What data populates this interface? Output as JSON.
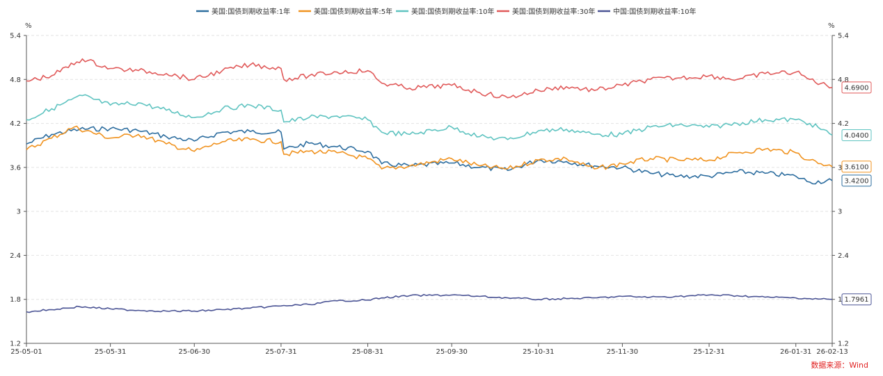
{
  "chart_data": {
    "type": "line",
    "unit_left": "%",
    "unit_right": "%",
    "ylim": [
      1.2,
      5.4
    ],
    "y_ticks": [
      "1.2",
      "1.8",
      "2.4",
      "3",
      "3.6",
      "4.2",
      "4.8",
      "5.4"
    ],
    "x_tick_labels": [
      "25-05-01",
      "25-05-31",
      "25-06-30",
      "25-07-31",
      "25-08-31",
      "25-09-30",
      "25-10-31",
      "25-11-30",
      "25-12-31",
      "26-01-31",
      "26-02-13"
    ],
    "grid": true,
    "legend_position": "top",
    "source": "数据来源：Wind",
    "series": [
      {
        "name": "美国:国债到期收益率:1年",
        "color": "#2b6c9e",
        "last_label": "3.4200",
        "points": [
          [
            "25-05-01",
            3.92
          ],
          [
            "25-05-10",
            4.05
          ],
          [
            "25-05-20",
            4.12
          ],
          [
            "25-05-31",
            4.13
          ],
          [
            "25-06-10",
            4.1
          ],
          [
            "25-06-20",
            4.02
          ],
          [
            "25-06-30",
            3.96
          ],
          [
            "25-07-10",
            4.08
          ],
          [
            "25-07-20",
            4.09
          ],
          [
            "25-07-31",
            4.08
          ],
          [
            "25-08-01",
            3.85
          ],
          [
            "25-08-10",
            3.93
          ],
          [
            "25-08-20",
            3.88
          ],
          [
            "25-08-31",
            3.82
          ],
          [
            "25-09-05",
            3.65
          ],
          [
            "25-09-15",
            3.62
          ],
          [
            "25-09-30",
            3.66
          ],
          [
            "25-10-10",
            3.6
          ],
          [
            "25-10-20",
            3.56
          ],
          [
            "25-10-31",
            3.7
          ],
          [
            "25-11-10",
            3.68
          ],
          [
            "25-11-20",
            3.62
          ],
          [
            "25-11-30",
            3.6
          ],
          [
            "25-12-10",
            3.52
          ],
          [
            "25-12-20",
            3.48
          ],
          [
            "25-12-31",
            3.48
          ],
          [
            "26-01-10",
            3.54
          ],
          [
            "26-01-20",
            3.52
          ],
          [
            "26-01-31",
            3.48
          ],
          [
            "26-02-05",
            3.4
          ],
          [
            "26-02-13",
            3.42
          ]
        ]
      },
      {
        "name": "美国:国债到期收益率:5年",
        "color": "#f0921e",
        "last_label": "3.6100",
        "points": [
          [
            "25-05-01",
            3.84
          ],
          [
            "25-05-10",
            4.0
          ],
          [
            "25-05-18",
            4.15
          ],
          [
            "25-05-31",
            4.0
          ],
          [
            "25-06-10",
            4.05
          ],
          [
            "25-06-20",
            3.92
          ],
          [
            "25-06-30",
            3.82
          ],
          [
            "25-07-10",
            3.95
          ],
          [
            "25-07-20",
            3.98
          ],
          [
            "25-07-31",
            3.95
          ],
          [
            "25-08-01",
            3.78
          ],
          [
            "25-08-10",
            3.82
          ],
          [
            "25-08-20",
            3.8
          ],
          [
            "25-08-31",
            3.72
          ],
          [
            "25-09-05",
            3.58
          ],
          [
            "25-09-15",
            3.62
          ],
          [
            "25-09-30",
            3.72
          ],
          [
            "25-10-10",
            3.62
          ],
          [
            "25-10-20",
            3.58
          ],
          [
            "25-10-31",
            3.7
          ],
          [
            "25-11-10",
            3.72
          ],
          [
            "25-11-20",
            3.58
          ],
          [
            "25-11-30",
            3.65
          ],
          [
            "25-12-10",
            3.72
          ],
          [
            "25-12-20",
            3.7
          ],
          [
            "25-12-31",
            3.7
          ],
          [
            "26-01-10",
            3.8
          ],
          [
            "26-01-20",
            3.85
          ],
          [
            "26-01-31",
            3.8
          ],
          [
            "26-02-05",
            3.7
          ],
          [
            "26-02-13",
            3.61
          ]
        ]
      },
      {
        "name": "美国:国债到期收益率:10年",
        "color": "#5ec3c0",
        "last_label": "4.0400",
        "points": [
          [
            "25-05-01",
            4.25
          ],
          [
            "25-05-10",
            4.4
          ],
          [
            "25-05-21",
            4.58
          ],
          [
            "25-05-31",
            4.45
          ],
          [
            "25-06-10",
            4.48
          ],
          [
            "25-06-20",
            4.38
          ],
          [
            "25-06-30",
            4.28
          ],
          [
            "25-07-10",
            4.4
          ],
          [
            "25-07-20",
            4.45
          ],
          [
            "25-07-31",
            4.38
          ],
          [
            "25-08-01",
            4.22
          ],
          [
            "25-08-10",
            4.28
          ],
          [
            "25-08-20",
            4.3
          ],
          [
            "25-08-31",
            4.25
          ],
          [
            "25-09-05",
            4.08
          ],
          [
            "25-09-15",
            4.05
          ],
          [
            "25-09-30",
            4.15
          ],
          [
            "25-10-10",
            4.02
          ],
          [
            "25-10-20",
            3.98
          ],
          [
            "25-10-31",
            4.1
          ],
          [
            "25-11-10",
            4.12
          ],
          [
            "25-11-20",
            4.05
          ],
          [
            "25-11-30",
            4.05
          ],
          [
            "25-12-10",
            4.15
          ],
          [
            "25-12-20",
            4.18
          ],
          [
            "25-12-31",
            4.15
          ],
          [
            "26-01-10",
            4.2
          ],
          [
            "26-01-20",
            4.25
          ],
          [
            "26-01-31",
            4.25
          ],
          [
            "26-02-05",
            4.2
          ],
          [
            "26-02-13",
            4.04
          ]
        ]
      },
      {
        "name": "美国:国债到期收益率:30年",
        "color": "#e05858",
        "last_label": "4.6900",
        "points": [
          [
            "25-05-01",
            4.78
          ],
          [
            "25-05-10",
            4.85
          ],
          [
            "25-05-21",
            5.08
          ],
          [
            "25-05-31",
            4.95
          ],
          [
            "25-06-10",
            4.92
          ],
          [
            "25-06-20",
            4.88
          ],
          [
            "25-06-30",
            4.8
          ],
          [
            "25-07-10",
            4.92
          ],
          [
            "25-07-20",
            5.0
          ],
          [
            "25-07-31",
            4.95
          ],
          [
            "25-08-01",
            4.8
          ],
          [
            "25-08-10",
            4.85
          ],
          [
            "25-08-20",
            4.9
          ],
          [
            "25-08-31",
            4.92
          ],
          [
            "25-09-05",
            4.75
          ],
          [
            "25-09-15",
            4.68
          ],
          [
            "25-09-30",
            4.72
          ],
          [
            "25-10-10",
            4.62
          ],
          [
            "25-10-20",
            4.55
          ],
          [
            "25-10-31",
            4.65
          ],
          [
            "25-11-10",
            4.7
          ],
          [
            "25-11-20",
            4.65
          ],
          [
            "25-11-30",
            4.72
          ],
          [
            "25-12-10",
            4.8
          ],
          [
            "25-12-20",
            4.82
          ],
          [
            "25-12-31",
            4.85
          ],
          [
            "26-01-10",
            4.8
          ],
          [
            "26-01-20",
            4.88
          ],
          [
            "26-01-31",
            4.9
          ],
          [
            "26-02-05",
            4.8
          ],
          [
            "26-02-13",
            4.69
          ]
        ]
      },
      {
        "name": "中国:国债到期收益率:10年",
        "color": "#4a5394",
        "last_label": "1.7961",
        "points": [
          [
            "25-05-01",
            1.63
          ],
          [
            "25-05-10",
            1.66
          ],
          [
            "25-05-20",
            1.7
          ],
          [
            "25-05-31",
            1.67
          ],
          [
            "25-06-10",
            1.65
          ],
          [
            "25-06-20",
            1.64
          ],
          [
            "25-06-30",
            1.64
          ],
          [
            "25-07-10",
            1.66
          ],
          [
            "25-07-20",
            1.68
          ],
          [
            "25-07-31",
            1.71
          ],
          [
            "25-08-10",
            1.73
          ],
          [
            "25-08-20",
            1.78
          ],
          [
            "25-08-31",
            1.79
          ],
          [
            "25-09-05",
            1.82
          ],
          [
            "25-09-15",
            1.85
          ],
          [
            "25-09-30",
            1.86
          ],
          [
            "25-10-10",
            1.84
          ],
          [
            "25-10-20",
            1.82
          ],
          [
            "25-10-31",
            1.8
          ],
          [
            "25-11-10",
            1.81
          ],
          [
            "25-11-20",
            1.82
          ],
          [
            "25-11-30",
            1.84
          ],
          [
            "25-12-10",
            1.83
          ],
          [
            "25-12-20",
            1.84
          ],
          [
            "25-12-31",
            1.86
          ],
          [
            "26-01-10",
            1.85
          ],
          [
            "26-01-20",
            1.83
          ],
          [
            "26-01-31",
            1.82
          ],
          [
            "26-02-05",
            1.81
          ],
          [
            "26-02-13",
            1.8
          ]
        ]
      }
    ]
  }
}
